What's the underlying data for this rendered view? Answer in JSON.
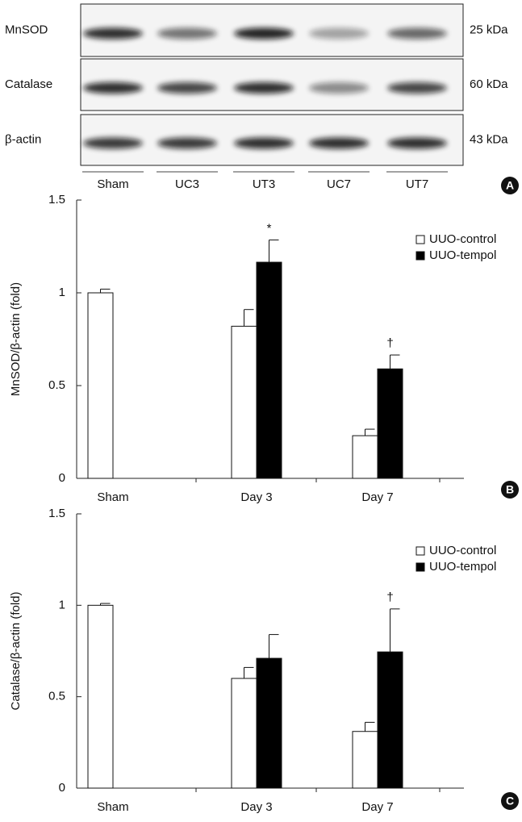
{
  "blot": {
    "panel": "A",
    "rows": [
      {
        "label": "MnSOD",
        "size": "25 kDa"
      },
      {
        "label": "Catalase",
        "size": "60 kDa"
      },
      {
        "label": "β-actin",
        "size": "43 kDa"
      }
    ],
    "lanes": [
      "Sham",
      "UC3",
      "UT3",
      "UC7",
      "UT7"
    ]
  },
  "chart_data": [
    {
      "type": "bar",
      "panel": "B",
      "ylabel": "MnSOD/β-actin (fold)",
      "categories": [
        "Sham",
        "Day 3",
        "Day 7"
      ],
      "ylim": [
        0,
        1.5
      ],
      "yticks": [
        0,
        0.5,
        1,
        1.5
      ],
      "series": [
        {
          "name": "UUO-control",
          "color": "#ffffff",
          "values": [
            1.0,
            0.82,
            0.23
          ],
          "errors": [
            0.02,
            0.09,
            0.035
          ]
        },
        {
          "name": "UUO-tempol",
          "color": "#000000",
          "values": [
            null,
            1.165,
            0.59
          ],
          "errors": [
            null,
            0.12,
            0.075
          ],
          "annotations": [
            null,
            "*",
            "†"
          ]
        }
      ]
    },
    {
      "type": "bar",
      "panel": "C",
      "ylabel": "Catalase/β-actin (fold)",
      "categories": [
        "Sham",
        "Day 3",
        "Day 7"
      ],
      "ylim": [
        0,
        1.5
      ],
      "yticks": [
        0,
        0.5,
        1,
        1.5
      ],
      "series": [
        {
          "name": "UUO-control",
          "color": "#ffffff",
          "values": [
            1.0,
            0.6,
            0.31
          ],
          "errors": [
            0.01,
            0.06,
            0.05
          ]
        },
        {
          "name": "UUO-tempol",
          "color": "#000000",
          "values": [
            null,
            0.71,
            0.745
          ],
          "errors": [
            null,
            0.13,
            0.235
          ],
          "annotations": [
            null,
            null,
            "†"
          ]
        }
      ]
    }
  ]
}
